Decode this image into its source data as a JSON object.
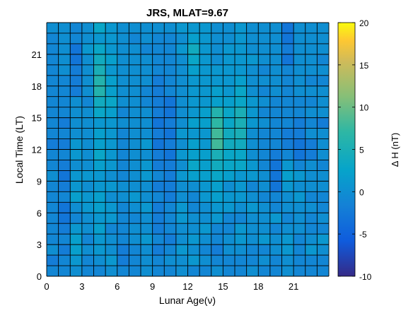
{
  "chart_data": {
    "type": "heatmap",
    "title": "JRS, MLAT=9.67",
    "xlabel": "Lunar Age(ν)",
    "ylabel": "Local Time (LT)",
    "colorbar_label": "Δ H (nT)",
    "x_ticks": [
      "0",
      "3",
      "6",
      "9",
      "12",
      "15",
      "18",
      "21"
    ],
    "y_ticks": [
      "0",
      "3",
      "6",
      "9",
      "12",
      "15",
      "18",
      "21"
    ],
    "colorbar_ticks": [
      "20",
      "15",
      "10",
      "5",
      "0",
      "-5",
      "-10"
    ],
    "xlim": [
      0,
      24
    ],
    "ylim": [
      0,
      24
    ],
    "clim": [
      -10,
      20
    ],
    "colormap": "parula",
    "grid": "cell-edges",
    "x_categories": [
      0,
      1,
      2,
      3,
      4,
      5,
      6,
      7,
      8,
      9,
      10,
      11,
      12,
      13,
      14,
      15,
      16,
      17,
      18,
      19,
      20,
      21,
      22,
      23
    ],
    "y_categories": [
      0,
      1,
      2,
      3,
      4,
      5,
      6,
      7,
      8,
      9,
      10,
      11,
      12,
      13,
      14,
      15,
      16,
      17,
      18,
      19,
      20,
      21,
      22,
      23
    ],
    "values": [
      [
        -1,
        -1,
        0,
        -1,
        -1,
        0,
        -1,
        -1,
        0,
        -1,
        -1,
        0,
        -1,
        -1,
        0,
        -1,
        -1,
        0,
        -1,
        -1,
        0,
        -1,
        -1,
        -1
      ],
      [
        -2,
        -1,
        1,
        -1,
        0,
        1,
        -2,
        -1,
        0,
        -1,
        0,
        0,
        1,
        0,
        -1,
        -1,
        -1,
        -1,
        0,
        -1,
        0,
        -1,
        -1,
        -1
      ],
      [
        0,
        -2,
        2,
        0,
        1,
        0,
        -2,
        -1,
        0,
        -2,
        -1,
        1,
        0,
        -1,
        -2,
        0,
        0,
        -1,
        -1,
        0,
        1,
        -1,
        1,
        0
      ],
      [
        -1,
        -1,
        2,
        -1,
        1,
        0,
        -1,
        0,
        1,
        -1,
        -2,
        0,
        1,
        0,
        -1,
        0,
        1,
        0,
        1,
        0,
        1,
        -1,
        0,
        1
      ],
      [
        -1,
        -2,
        1,
        0,
        2,
        -1,
        -1,
        0,
        0,
        -2,
        -1,
        0,
        0,
        1,
        -1,
        -1,
        1,
        0,
        0,
        -1,
        0,
        0,
        -1,
        -1
      ],
      [
        -1,
        -3,
        -1,
        0,
        1,
        1,
        -1,
        -1,
        0,
        -2,
        -1,
        1,
        0,
        0,
        1,
        -1,
        -1,
        0,
        0,
        1,
        -1,
        0,
        -1,
        0
      ],
      [
        -1,
        -3,
        0,
        1,
        2,
        1,
        -1,
        0,
        1,
        -2,
        -1,
        1,
        -1,
        0,
        1,
        1,
        0,
        1,
        0,
        -1,
        0,
        0,
        0,
        -1
      ],
      [
        -1,
        -1,
        2,
        1,
        2,
        0,
        0,
        1,
        0,
        -1,
        -2,
        0,
        -1,
        1,
        2,
        1,
        1,
        0,
        -1,
        -1,
        0,
        1,
        -1,
        -1
      ],
      [
        -1,
        -2,
        1,
        0,
        1,
        1,
        0,
        0,
        0,
        -2,
        -2,
        0,
        0,
        1,
        2,
        0,
        1,
        -1,
        0,
        -3,
        1,
        0,
        0,
        0
      ],
      [
        0,
        -3,
        1,
        1,
        1,
        0,
        -1,
        0,
        1,
        -1,
        -2,
        1,
        2,
        2,
        3,
        2,
        1,
        1,
        0,
        -3,
        2,
        1,
        0,
        0
      ],
      [
        -1,
        -2,
        0,
        0,
        2,
        1,
        -1,
        0,
        1,
        -2,
        -2,
        0,
        3,
        2,
        4,
        3,
        3,
        1,
        -1,
        -3,
        1,
        -1,
        0,
        -1
      ],
      [
        -1,
        -1,
        1,
        0,
        3,
        1,
        -1,
        0,
        0,
        -2,
        -3,
        1,
        2,
        2,
        5,
        3,
        3,
        0,
        -1,
        -2,
        -1,
        -3,
        -2,
        0
      ],
      [
        -2,
        -2,
        1,
        0,
        2,
        1,
        -1,
        0,
        1,
        -3,
        -2,
        0,
        2,
        1,
        8,
        4,
        4,
        0,
        -1,
        -1,
        -2,
        -3,
        -2,
        0
      ],
      [
        -1,
        -1,
        0,
        0,
        2,
        1,
        -1,
        0,
        0,
        -2,
        -3,
        1,
        1,
        1,
        8,
        4,
        5,
        0,
        -1,
        -1,
        -2,
        -2,
        0,
        0
      ],
      [
        -1,
        -2,
        0,
        0,
        1,
        1,
        0,
        0,
        0,
        -3,
        -2,
        0,
        2,
        2,
        7,
        3,
        5,
        1,
        0,
        -1,
        -1,
        -2,
        -1,
        -2
      ],
      [
        -1,
        -1,
        0,
        0,
        3,
        2,
        -1,
        0,
        0,
        -2,
        -3,
        0,
        1,
        2,
        6,
        3,
        5,
        1,
        -1,
        -1,
        -1,
        -1,
        0,
        0
      ],
      [
        -1,
        -1,
        0,
        -1,
        4,
        3,
        0,
        0,
        -1,
        -2,
        -3,
        0,
        1,
        1,
        2,
        2,
        3,
        1,
        0,
        -1,
        -1,
        -1,
        -1,
        0
      ],
      [
        -1,
        -1,
        -2,
        0,
        6,
        2,
        0,
        0,
        -1,
        -2,
        -1,
        0,
        1,
        1,
        2,
        1,
        3,
        0,
        -1,
        0,
        -1,
        0,
        0,
        0
      ],
      [
        -1,
        -1,
        -2,
        0,
        6,
        2,
        0,
        0,
        0,
        -2,
        -1,
        0,
        1,
        1,
        1,
        1,
        2,
        0,
        0,
        0,
        -1,
        0,
        -1,
        -1
      ],
      [
        -1,
        0,
        -2,
        0,
        5,
        1,
        0,
        0,
        0,
        -1,
        -1,
        0,
        2,
        1,
        1,
        1,
        1,
        0,
        -1,
        0,
        -1,
        0,
        0,
        0
      ],
      [
        -1,
        0,
        -3,
        0,
        4,
        2,
        0,
        0,
        0,
        -1,
        -1,
        0,
        3,
        1,
        0,
        1,
        1,
        1,
        0,
        0,
        -3,
        0,
        0,
        -1
      ],
      [
        -1,
        0,
        -3,
        1,
        3,
        1,
        0,
        0,
        -1,
        -1,
        -1,
        1,
        4,
        1,
        0,
        1,
        1,
        0,
        0,
        0,
        -2,
        0,
        0,
        0
      ],
      [
        -1,
        0,
        -1,
        0,
        1,
        1,
        0,
        -1,
        0,
        -1,
        -1,
        0,
        2,
        1,
        0,
        0,
        1,
        0,
        0,
        0,
        -3,
        0,
        0,
        0
      ],
      [
        0,
        0,
        -1,
        0,
        3,
        1,
        0,
        0,
        0,
        0,
        0,
        1,
        1,
        1,
        0,
        0,
        1,
        0,
        0,
        0,
        -3,
        0,
        0,
        0
      ]
    ]
  }
}
